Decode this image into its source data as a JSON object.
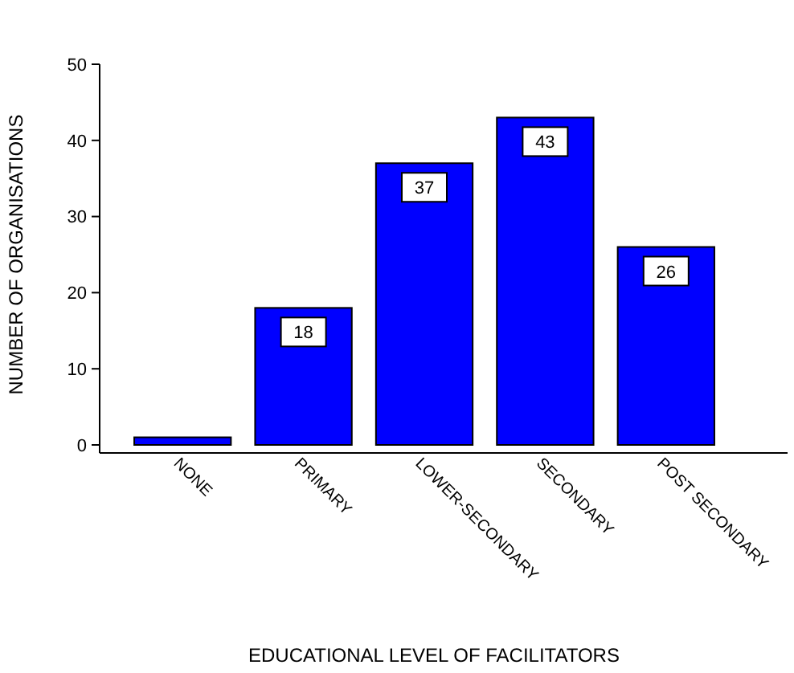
{
  "chart_data": {
    "type": "bar",
    "xlabel": "EDUCATIONAL LEVEL OF FACILITATORS",
    "ylabel": "NUMBER OF ORGANISATIONS",
    "categories": [
      "NONE",
      "PRIMARY",
      "LOWER-SECONDARY",
      "SECONDARY",
      "POST SECONDARY"
    ],
    "values": [
      1,
      18,
      37,
      43,
      26
    ],
    "value_labels": [
      null,
      "18",
      "37",
      "43",
      "26"
    ],
    "color": "#0000ff",
    "ylim": [
      0,
      50
    ],
    "yticks": [
      0,
      10,
      20,
      30,
      40,
      50
    ],
    "grid": false
  }
}
